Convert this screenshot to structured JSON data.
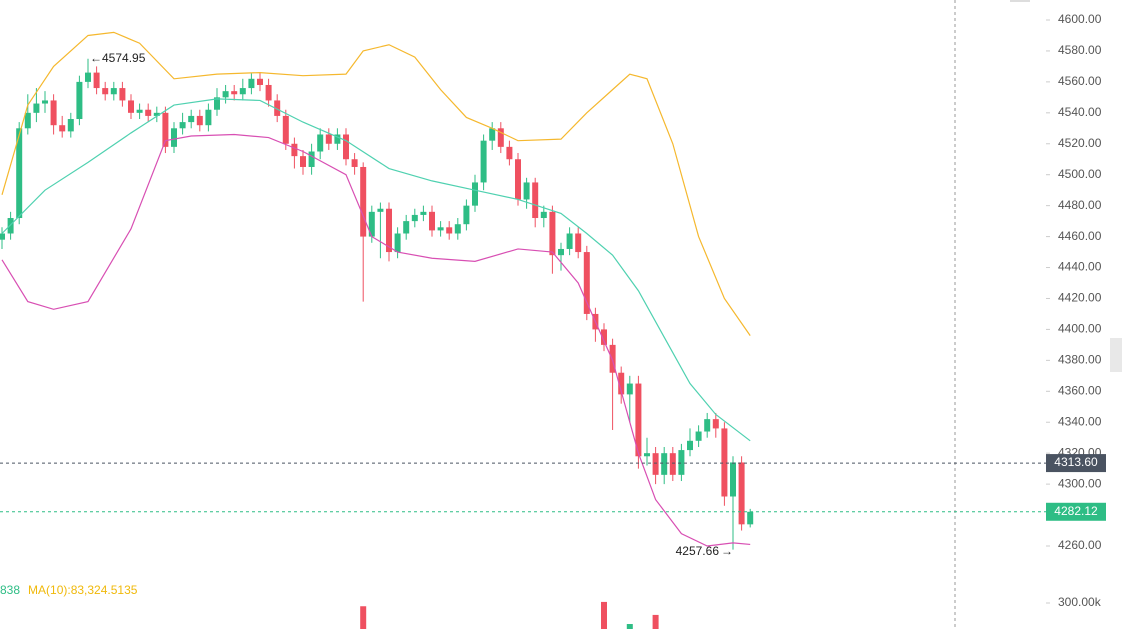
{
  "chart_data": {
    "type": "candlestick",
    "candles": {
      "open": [
        4458,
        4462,
        4472,
        4530,
        4540,
        4546,
        4548,
        4532,
        4528,
        4536,
        4560,
        4566,
        4556,
        4552,
        4556,
        4548,
        4540,
        4542,
        4538,
        4540,
        4518,
        4530,
        4534,
        4538,
        4532,
        4542,
        4550,
        4554,
        4552,
        4556,
        4562,
        4558,
        4548,
        4538,
        4520,
        4512,
        4505,
        4515,
        4526,
        4520,
        4526,
        4510,
        4505,
        4460,
        4476,
        4478,
        4450,
        4462,
        4470,
        4474,
        4476,
        4464,
        4466,
        4462,
        4468,
        4480,
        4495,
        4522,
        4530,
        4518,
        4510,
        4484,
        4495,
        4472,
        4476,
        4448,
        4452,
        4462,
        4450,
        4410,
        4400,
        4390,
        4372,
        4358,
        4365,
        4318,
        4320,
        4306,
        4320,
        4306,
        4322,
        4328,
        4334,
        4342,
        4336,
        4292,
        4314,
        4274
      ],
      "high": [
        4466,
        4476,
        4534,
        4552,
        4556,
        4554,
        4552,
        4538,
        4540,
        4564,
        4574.95,
        4570,
        4560,
        4560,
        4560,
        4552,
        4546,
        4546,
        4544,
        4544,
        4534,
        4540,
        4542,
        4542,
        4546,
        4556,
        4558,
        4558,
        4562,
        4566,
        4566,
        4562,
        4552,
        4542,
        4524,
        4516,
        4520,
        4530,
        4530,
        4530,
        4530,
        4514,
        4508,
        4480,
        4482,
        4482,
        4466,
        4474,
        4478,
        4480,
        4480,
        4470,
        4470,
        4472,
        4484,
        4500,
        4526,
        4534,
        4534,
        4522,
        4514,
        4498,
        4498,
        4480,
        4480,
        4456,
        4466,
        4466,
        4454,
        4414,
        4404,
        4394,
        4376,
        4370,
        4370,
        4330,
        4324,
        4324,
        4324,
        4326,
        4336,
        4338,
        4346,
        4346,
        4340,
        4318,
        4318,
        4284
      ],
      "low": [
        4452,
        4458,
        4468,
        4526,
        4534,
        4540,
        4526,
        4524,
        4524,
        4532,
        4556,
        4552,
        4548,
        4548,
        4544,
        4536,
        4536,
        4534,
        4534,
        4514,
        4514,
        4526,
        4530,
        4528,
        4528,
        4538,
        4546,
        4548,
        4548,
        4552,
        4554,
        4544,
        4534,
        4516,
        4504,
        4500,
        4500,
        4510,
        4516,
        4516,
        4506,
        4500,
        4418,
        4456,
        4446,
        4444,
        4446,
        4458,
        4466,
        4470,
        4460,
        4460,
        4458,
        4458,
        4464,
        4476,
        4490,
        4516,
        4514,
        4506,
        4480,
        4478,
        4466,
        4466,
        4436,
        4438,
        4448,
        4446,
        4406,
        4392,
        4386,
        4335,
        4352,
        4340,
        4310,
        4312,
        4300,
        4300,
        4302,
        4302,
        4318,
        4324,
        4330,
        4330,
        4286,
        4257.66,
        4270,
        4272
      ],
      "close": [
        4462,
        4472,
        4530,
        4540,
        4546,
        4548,
        4532,
        4528,
        4536,
        4560,
        4566,
        4556,
        4552,
        4556,
        4548,
        4540,
        4542,
        4538,
        4540,
        4518,
        4530,
        4534,
        4538,
        4532,
        4542,
        4550,
        4554,
        4552,
        4556,
        4562,
        4558,
        4548,
        4538,
        4520,
        4512,
        4505,
        4515,
        4526,
        4520,
        4526,
        4510,
        4505,
        4460,
        4476,
        4478,
        4450,
        4462,
        4470,
        4474,
        4476,
        4464,
        4466,
        4462,
        4468,
        4480,
        4495,
        4522,
        4530,
        4518,
        4510,
        4484,
        4495,
        4472,
        4476,
        4448,
        4452,
        4462,
        4450,
        4410,
        4400,
        4390,
        4372,
        4358,
        4365,
        4318,
        4320,
        4306,
        4320,
        4306,
        4322,
        4328,
        4334,
        4342,
        4336,
        4292,
        4314,
        4274,
        4282.12
      ]
    },
    "up_color": "#2ebd85",
    "down_color": "#ef5060",
    "bands": [
      {
        "color": "#f5b82e",
        "x": [
          0,
          3,
          6,
          10,
          13,
          16,
          20,
          25,
          30,
          35,
          40,
          42,
          45,
          48,
          51,
          54,
          57,
          60,
          65,
          68,
          71,
          73,
          75,
          78,
          81,
          84,
          87
        ],
        "values": [
          4487,
          4545,
          4570,
          4590,
          4592,
          4585,
          4562,
          4565,
          4566,
          4564,
          4565,
          4580,
          4584,
          4576,
          4555,
          4537,
          4530,
          4522,
          4523,
          4540,
          4555,
          4565,
          4562,
          4520,
          4460,
          4420,
          4396
        ]
      },
      {
        "color": "#4fd1b0",
        "x": [
          0,
          5,
          10,
          15,
          20,
          25,
          30,
          35,
          40,
          45,
          50,
          55,
          60,
          65,
          68,
          71,
          74,
          77,
          80,
          83,
          87
        ],
        "values": [
          4462,
          4490,
          4508,
          4527,
          4545,
          4549,
          4548,
          4534,
          4522,
          4504,
          4496,
          4490,
          4484,
          4475,
          4462,
          4448,
          4425,
          4395,
          4365,
          4345,
          4328
        ]
      },
      {
        "color": "#d84fb3",
        "x": [
          0,
          3,
          6,
          10,
          15,
          19,
          22,
          27,
          31,
          35,
          40,
          43,
          46,
          50,
          55,
          60,
          64,
          67,
          71,
          74,
          76,
          79,
          82,
          85,
          87
        ],
        "values": [
          4445,
          4418,
          4413,
          4418,
          4465,
          4522,
          4525,
          4526,
          4524,
          4515,
          4500,
          4460,
          4450,
          4446,
          4444,
          4452,
          4450,
          4430,
          4380,
          4320,
          4290,
          4268,
          4260,
          4262,
          4261
        ]
      }
    ],
    "ylim": [
      4260,
      4600
    ],
    "yticks": [
      {
        "value": 4260,
        "label": "4260.00"
      },
      {
        "value": 4280,
        "label": "4280.00"
      },
      {
        "value": 4300,
        "label": "4300.00"
      },
      {
        "value": 4320,
        "label": "4320.00"
      },
      {
        "value": 4340,
        "label": "4340.00"
      },
      {
        "value": 4360,
        "label": "4360.00"
      },
      {
        "value": 4380,
        "label": "4380.00"
      },
      {
        "value": 4400,
        "label": "4400.00"
      },
      {
        "value": 4420,
        "label": "4420.00"
      },
      {
        "value": 4440,
        "label": "4440.00"
      },
      {
        "value": 4460,
        "label": "4460.00"
      },
      {
        "value": 4480,
        "label": "4480.00"
      },
      {
        "value": 4500,
        "label": "4500.00"
      },
      {
        "value": 4520,
        "label": "4520.00"
      },
      {
        "value": 4540,
        "label": "4540.00"
      },
      {
        "value": 4560,
        "label": "4560.00"
      },
      {
        "value": 4580,
        "label": "4580.00"
      },
      {
        "value": 4600,
        "label": "4600.00"
      }
    ],
    "prev_close": {
      "value": 4313.6,
      "label": "4313.60"
    },
    "volume": {
      "indices": [
        42,
        70,
        73,
        76
      ],
      "values": [
        297000,
        301000,
        280600,
        289000
      ],
      "vlim": [
        276000,
        312000
      ],
      "vticks": [
        {
          "value": 300000,
          "label": "300.00k"
        }
      ]
    },
    "legend": [
      {
        "text": "838",
        "color": "#2ebd85"
      },
      {
        "text": "MA(10):83,324.5135",
        "color": "#f0b90b"
      }
    ]
  }
}
